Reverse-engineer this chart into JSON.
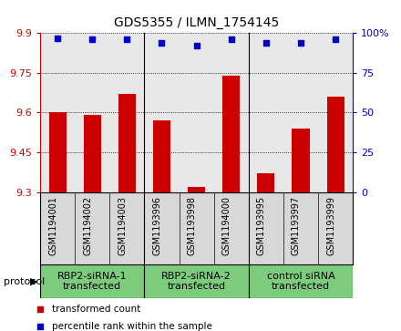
{
  "title": "GDS5355 / ILMN_1754145",
  "samples": [
    "GSM1194001",
    "GSM1194002",
    "GSM1194003",
    "GSM1193996",
    "GSM1193998",
    "GSM1194000",
    "GSM1193995",
    "GSM1193997",
    "GSM1193999"
  ],
  "bar_values": [
    9.6,
    9.59,
    9.67,
    9.57,
    9.32,
    9.74,
    9.37,
    9.54,
    9.66
  ],
  "dot_values": [
    97,
    96,
    96,
    94,
    92,
    96,
    94,
    94,
    96
  ],
  "ymin": 9.3,
  "ymax": 9.9,
  "yticks": [
    9.3,
    9.45,
    9.6,
    9.75,
    9.9
  ],
  "y2ticks": [
    0,
    25,
    50,
    75,
    100
  ],
  "bar_color": "#cc0000",
  "dot_color": "#0000cc",
  "plot_bg": "#e8e8e8",
  "sample_bg": "#d8d8d8",
  "groups": [
    {
      "label": "RBP2-siRNA-1\ntransfected",
      "start": 0,
      "end": 3,
      "color": "#7dcc7d"
    },
    {
      "label": "RBP2-siRNA-2\ntransfected",
      "start": 3,
      "end": 6,
      "color": "#7dcc7d"
    },
    {
      "label": "control siRNA\ntransfected",
      "start": 6,
      "end": 9,
      "color": "#7dcc7d"
    }
  ],
  "protocol_label": "protocol",
  "legend_bar_label": "transformed count",
  "legend_dot_label": "percentile rank within the sample",
  "title_fontsize": 10,
  "tick_fontsize": 8,
  "sample_fontsize": 7,
  "group_fontsize": 8
}
